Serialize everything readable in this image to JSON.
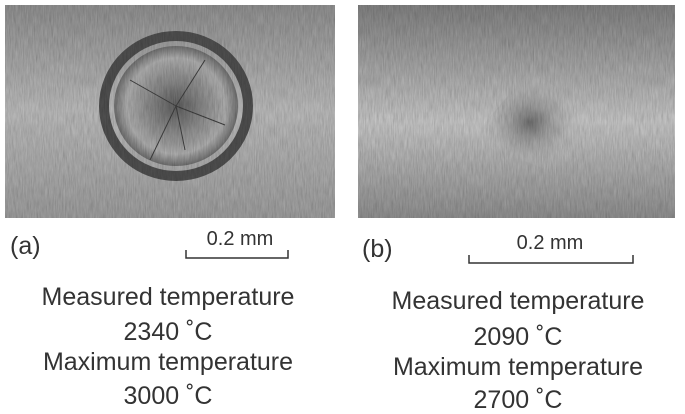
{
  "panels": [
    {
      "label": "(a)",
      "scale": "0.2 mm",
      "measured_label": "Measured temperature",
      "measured_value": "2340 ˚C",
      "maximum_label": "Maximum temperature",
      "maximum_value": "3000 ˚C"
    },
    {
      "label": "(b)",
      "scale": "0.2 mm",
      "measured_label": "Measured temperature",
      "measured_value": "2090 ˚C",
      "maximum_label": "Maximum temperature",
      "maximum_value": "2700 ˚C"
    }
  ]
}
